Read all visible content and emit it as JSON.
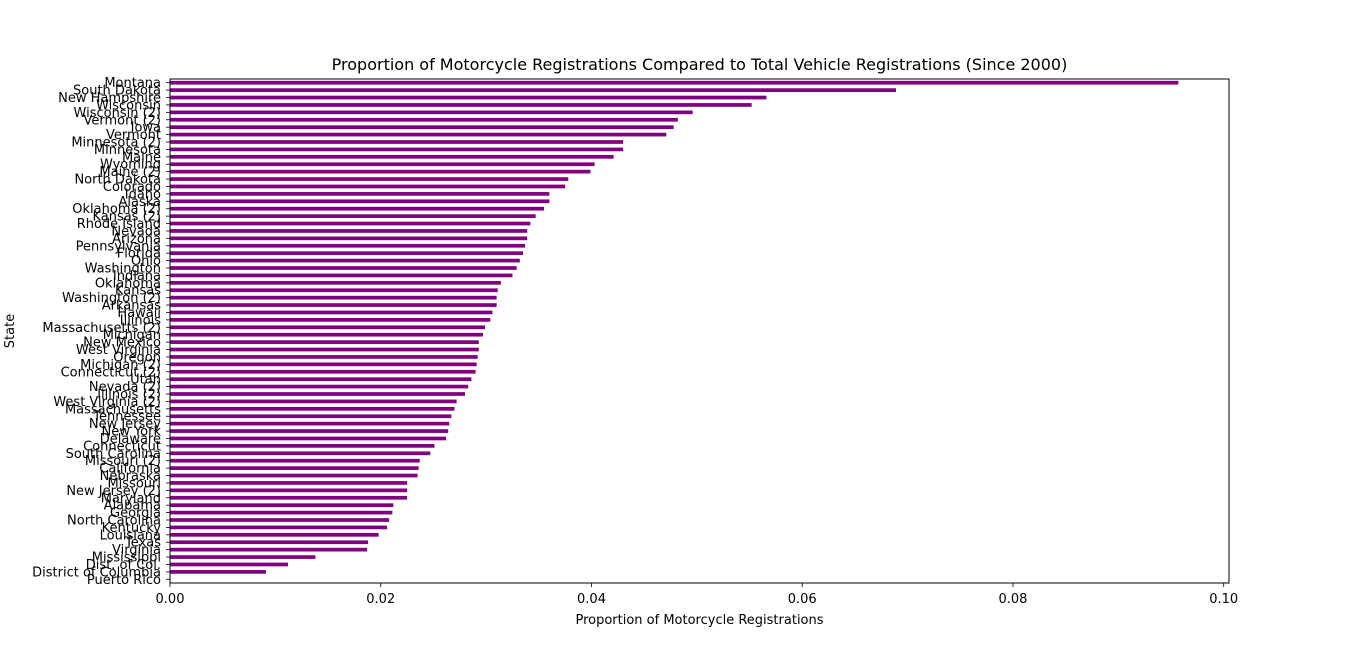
{
  "chart_data": {
    "type": "bar",
    "orientation": "horizontal",
    "title": "Proportion of Motorcycle Registrations Compared to Total Vehicle Registrations (Since 2000)",
    "xlabel": "Proportion of Motorcycle Registrations",
    "ylabel": "State",
    "xlim": [
      0.0,
      0.1005
    ],
    "xticks": [
      "0.00",
      "0.02",
      "0.04",
      "0.06",
      "0.08",
      "0.10"
    ],
    "bar_color": "#800080",
    "grid": false,
    "categories": [
      "Montana",
      "South Dakota",
      "New Hampshire",
      "Wisconsin",
      "Wisconsin (2)",
      "Vermont (2)",
      "Iowa",
      "Vermont",
      "Minnesota (2)",
      "Minnesota",
      "Maine",
      "Wyoming",
      "Maine (2)",
      "North Dakota",
      "Colorado",
      "Idaho",
      "Alaska",
      "Oklahoma (2)",
      "Kansas (2)",
      "Rhode Island",
      "Nevada",
      "Arizona",
      "Pennsylvania",
      "Florida",
      "Ohio",
      "Washington",
      "Indiana",
      "Oklahoma",
      "Kansas",
      "Washington (2)",
      "Arkansas",
      "Hawaii",
      "Illinois",
      "Massachusetts (2)",
      "Michigan",
      "New Mexico",
      "West Virginia",
      "Oregon",
      "Michigan (2)",
      "Connecticut (2)",
      "Utah",
      "Nevada (2)",
      "Illinois (2)",
      "West Virginia (2)",
      "Massachusetts",
      "Tennessee",
      "New Jersey",
      "New York",
      "Delaware",
      "Connecticut",
      "South Carolina",
      "Missouri (2)",
      "California",
      "Nebraska",
      "Missouri",
      "New Jersey (2)",
      "Maryland",
      "Alabama",
      "Georgia",
      "North Carolina",
      "Kentucky",
      "Louisiana",
      "Texas",
      "Virginia",
      "Mississippi",
      "Dist. of Col.",
      "District of Columbia",
      "Puerto Rico"
    ],
    "values": [
      0.0957,
      0.0689,
      0.0566,
      0.0552,
      0.0496,
      0.0482,
      0.0478,
      0.0471,
      0.043,
      0.043,
      0.0421,
      0.0403,
      0.0399,
      0.0378,
      0.0375,
      0.036,
      0.036,
      0.0355,
      0.0347,
      0.0342,
      0.0339,
      0.0339,
      0.0337,
      0.0335,
      0.0332,
      0.0329,
      0.0325,
      0.0314,
      0.0311,
      0.031,
      0.031,
      0.0306,
      0.0304,
      0.0299,
      0.0297,
      0.0293,
      0.0293,
      0.0292,
      0.0291,
      0.029,
      0.0286,
      0.0283,
      0.028,
      0.0272,
      0.027,
      0.0267,
      0.0265,
      0.0264,
      0.0262,
      0.0251,
      0.0247,
      0.0237,
      0.0236,
      0.0235,
      0.0225,
      0.0225,
      0.0225,
      0.0212,
      0.0211,
      0.0208,
      0.0206,
      0.0198,
      0.0188,
      0.0187,
      0.0138,
      0.0112,
      0.0091,
      0.0
    ]
  }
}
